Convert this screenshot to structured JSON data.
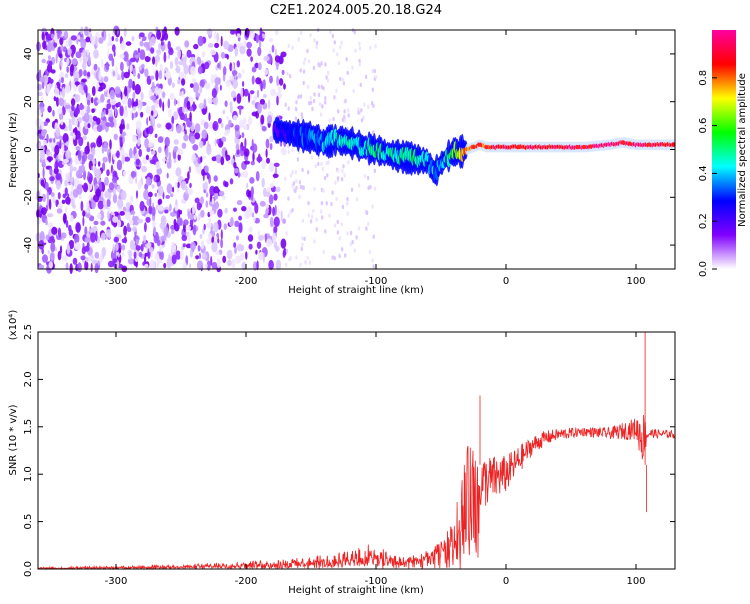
{
  "title": "C2E1.2024.005.20.18.G24",
  "chart_data": [
    {
      "type": "heatmap",
      "xlabel": "Height of straight line (km)",
      "ylabel": "Frequency (Hz)",
      "xlim": [
        -360,
        130
      ],
      "ylim": [
        -50,
        50
      ],
      "xticks": [
        -300,
        -200,
        -100,
        0,
        100
      ],
      "yticks": [
        -40,
        -20,
        0,
        20,
        40
      ],
      "colorbar": {
        "label": "Normalized spectral amplitude",
        "range": [
          0,
          1
        ],
        "ticks": [
          "0.0",
          "0.2",
          "0.4",
          "0.6",
          "0.8"
        ],
        "colors": [
          "#ffffff",
          "#8000ff",
          "#0000ff",
          "#00ffff",
          "#00ff00",
          "#ffff00",
          "#ff0000",
          "#ff00a0"
        ]
      },
      "signal_trace": {
        "x": [
          -175,
          -160,
          -150,
          -140,
          -130,
          -120,
          -110,
          -100,
          -90,
          -80,
          -70,
          -60,
          -55,
          -50,
          -45,
          -40,
          -35,
          -30,
          -25,
          -20,
          -15,
          -10,
          0,
          20,
          40,
          60,
          80,
          90,
          100,
          110,
          130
        ],
        "y": [
          8,
          6,
          5,
          3,
          4,
          3,
          1,
          0,
          -2,
          -3,
          -4,
          -5,
          -10,
          -6,
          -3,
          -1,
          -1,
          0,
          1,
          2,
          1,
          1,
          1,
          1,
          1,
          1,
          2,
          3,
          2,
          2,
          2
        ],
        "level": [
          0.2,
          0.3,
          0.35,
          0.4,
          0.45,
          0.45,
          0.45,
          0.5,
          0.45,
          0.5,
          0.5,
          0.45,
          0.35,
          0.4,
          0.5,
          0.6,
          0.7,
          0.8,
          0.8,
          0.85,
          0.8,
          0.9,
          0.9,
          0.9,
          0.9,
          0.95,
          0.95,
          0.9,
          0.95,
          0.9,
          0.9
        ]
      }
    },
    {
      "type": "line",
      "xlabel": "Height of straight line (km)",
      "ylabel": "SNR (10 * v/v)",
      "yscale_note": "(x10⁴)",
      "xlim": [
        -360,
        130
      ],
      "ylim": [
        0,
        2.5
      ],
      "xticks": [
        -300,
        -200,
        -100,
        0,
        100
      ],
      "yticks": [
        "0.0",
        "0.5",
        "1.0",
        "1.5",
        "2.0",
        "2.5"
      ],
      "line_color": "#ee2222",
      "envelope": {
        "x": [
          -360,
          -300,
          -250,
          -200,
          -150,
          -120,
          -100,
          -90,
          -80,
          -70,
          -60,
          -50,
          -40,
          -35,
          -30,
          -25,
          -20,
          -10,
          0,
          10,
          20,
          30,
          40,
          60,
          80,
          100,
          105,
          110,
          130
        ],
        "y": [
          0.01,
          0.02,
          0.03,
          0.05,
          0.08,
          0.12,
          0.16,
          0.1,
          0.08,
          0.1,
          0.15,
          0.22,
          0.35,
          0.6,
          0.85,
          0.9,
          0.9,
          0.95,
          1.0,
          1.15,
          1.3,
          1.38,
          1.42,
          1.45,
          1.43,
          1.48,
          1.4,
          1.43,
          1.42
        ],
        "spread": [
          0.01,
          0.01,
          0.02,
          0.03,
          0.05,
          0.08,
          0.15,
          0.05,
          0.05,
          0.05,
          0.06,
          0.08,
          0.15,
          0.35,
          0.45,
          0.4,
          0.3,
          0.25,
          0.2,
          0.15,
          0.1,
          0.08,
          0.06,
          0.05,
          0.06,
          0.12,
          0.3,
          0.05,
          0.04
        ]
      },
      "spikes": [
        {
          "x": -20,
          "y": 1.83
        },
        {
          "x": 107,
          "y": 2.5
        },
        {
          "x": 108,
          "y": 0.6
        }
      ]
    }
  ]
}
